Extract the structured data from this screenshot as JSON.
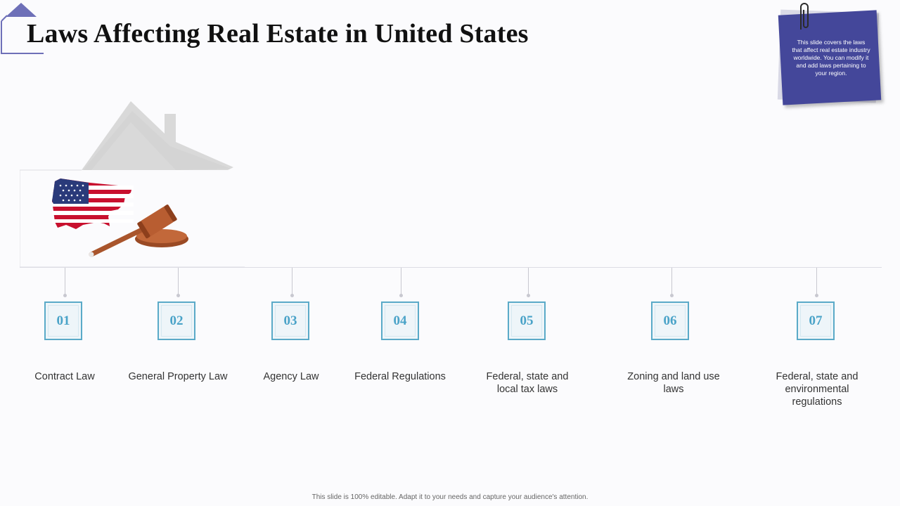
{
  "title": "Laws Affecting Real Estate in United States",
  "note": {
    "text": "This slide covers the laws that affect real estate industry worldwide. You can modify it and add laws pertaining to your region.",
    "color": "#44479a"
  },
  "colors": {
    "accent": "#4aa3c8",
    "box_border": "#5aaac8",
    "title": "#111111"
  },
  "laws": [
    {
      "number": "01",
      "label": "Contract Law"
    },
    {
      "number": "02",
      "label": "General Property Law"
    },
    {
      "number": "03",
      "label": "Agency Law"
    },
    {
      "number": "04",
      "label": "Federal Regulations"
    },
    {
      "number": "05",
      "label": "Federal, state and local tax laws"
    },
    {
      "number": "06",
      "label": "Zoning and land use laws"
    },
    {
      "number": "07",
      "label": "Federal, state and environmental regulations"
    }
  ],
  "footer": "This slide is 100% editable. Adapt it to your needs and capture your audience's attention."
}
